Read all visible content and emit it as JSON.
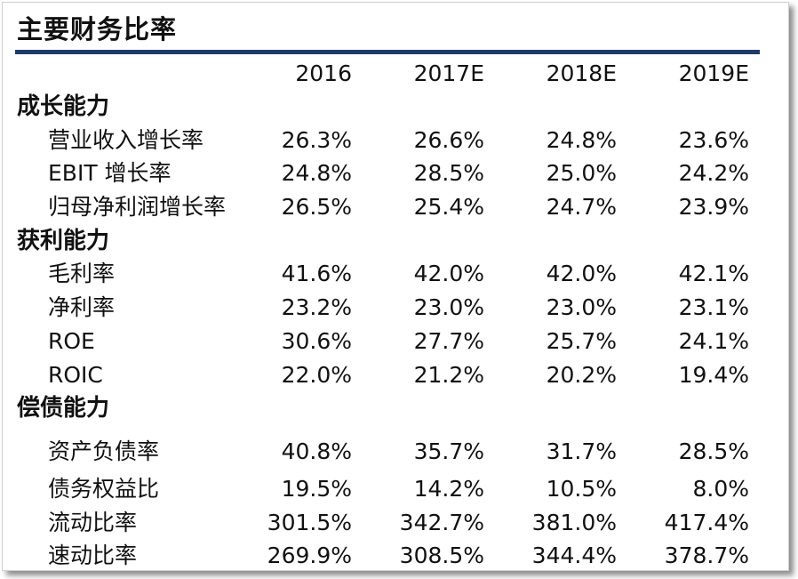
{
  "title": "主要财务比率",
  "header": [
    "2016",
    "2017E",
    "2018E",
    "2019E"
  ],
  "sections": [
    {
      "label": "成长能力",
      "rows": [
        {
          "label": "营业收入增长率",
          "values": [
            "26.3%",
            "26.6%",
            "24.8%",
            "23.6%"
          ]
        },
        {
          "label": "EBIT 增长率",
          "values": [
            "24.8%",
            "28.5%",
            "25.0%",
            "24.2%"
          ]
        },
        {
          "label": "归母净利润增长率",
          "values": [
            "26.5%",
            "25.4%",
            "24.7%",
            "23.9%"
          ]
        }
      ]
    },
    {
      "label": "获利能力",
      "rows": [
        {
          "label": "毛利率",
          "values": [
            "41.6%",
            "42.0%",
            "42.0%",
            "42.1%"
          ]
        },
        {
          "label": "净利率",
          "values": [
            "23.2%",
            "23.0%",
            "23.0%",
            "23.1%"
          ]
        },
        {
          "label": "ROE",
          "values": [
            "30.6%",
            "27.7%",
            "25.7%",
            "24.1%"
          ]
        },
        {
          "label": "ROIC",
          "values": [
            "22.0%",
            "21.2%",
            "20.2%",
            "19.4%"
          ]
        }
      ]
    },
    {
      "label": "偿债能力",
      "rows": [
        {
          "label": "资产负债率",
          "values": [
            "40.8%",
            "35.7%",
            "31.7%",
            "28.5%"
          ]
        },
        {
          "label": "债务权益比",
          "values": [
            "19.5%",
            "14.2%",
            "10.5%",
            "8.0%"
          ]
        },
        {
          "label": "流动比率",
          "values": [
            "301.5%",
            "342.7%",
            "381.0%",
            "417.4%"
          ]
        },
        {
          "label": "速动比率",
          "values": [
            "269.9%",
            "308.5%",
            "344.4%",
            "378.7%"
          ]
        }
      ]
    }
  ],
  "colors": {
    "rule": "#1f3a68",
    "text": "#111111"
  }
}
